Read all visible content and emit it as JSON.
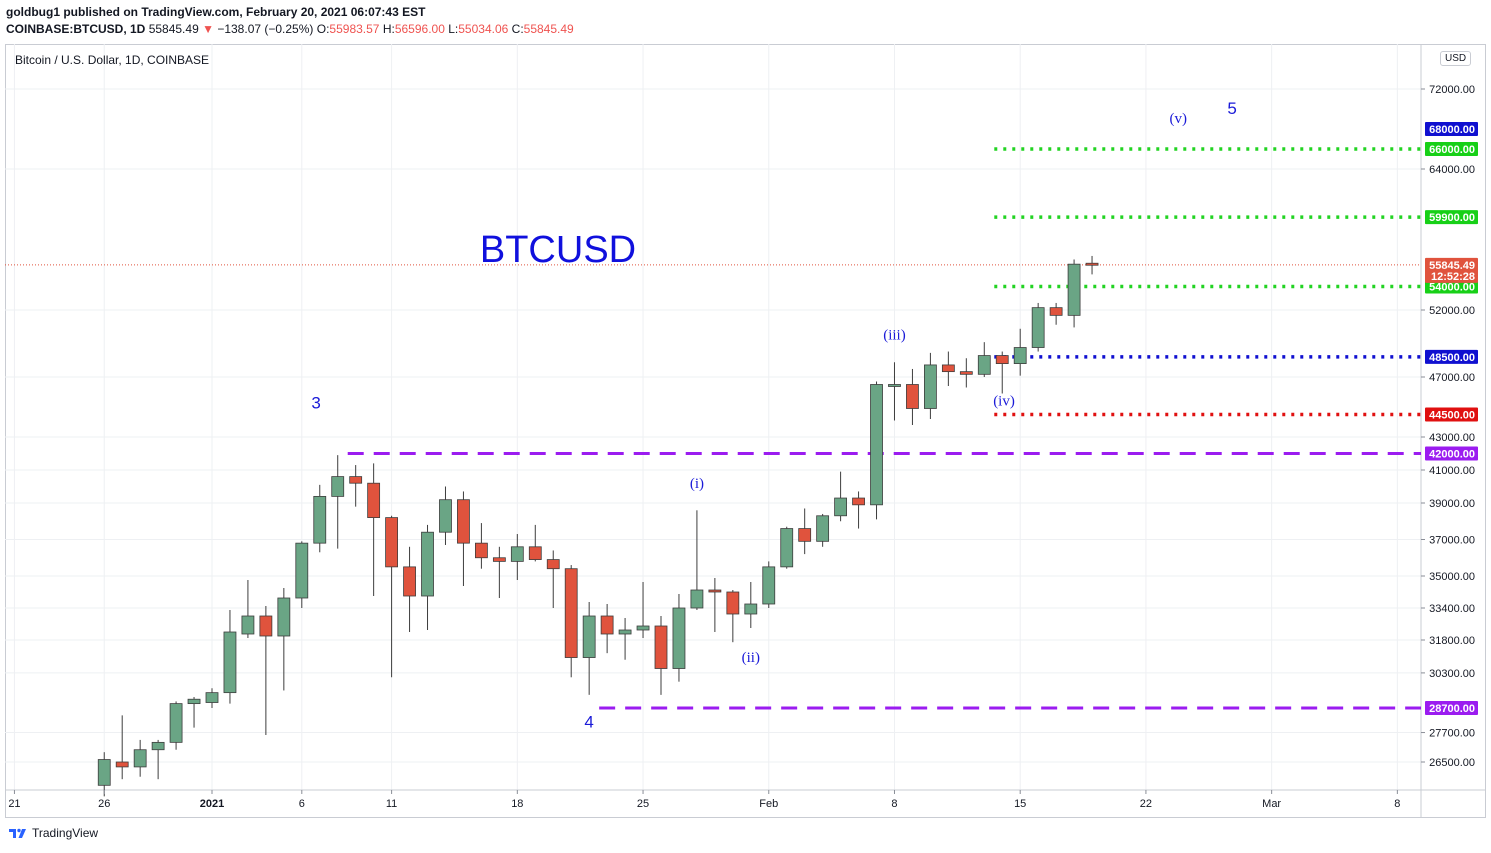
{
  "header": {
    "publisher_line": "goldbug1 published on TradingView.com, February 20, 2021 06:07:43 EST",
    "symbol": "COINBASE:BTCUSD, 1D",
    "last": "55845.49",
    "change": "−138.07 (−0.25%)",
    "o_label": "O:",
    "o_value": "55983.57",
    "h_label": "H:",
    "h_value": "56596.00",
    "l_label": "L:",
    "l_value": "55034.06",
    "c_label": "C:",
    "c_value": "55845.49"
  },
  "chart_title": "Bitcoin / U.S. Dollar, 1D, COINBASE",
  "currency_badge": "USD",
  "footer_brand": "TradingView",
  "colors": {
    "up": "#6aa585",
    "down": "#e0533d",
    "green_level": "#22d322",
    "blue_level": "#1010d0",
    "red_level": "#e01010",
    "purple_level": "#9b1cf0",
    "wave_label": "#1a1ad8"
  },
  "chart_data": {
    "type": "candlestick",
    "title": "BTCUSD",
    "y_axis_ticks": [
      "72000.00",
      "64000.00",
      "52000.00",
      "47000.00",
      "43000.00",
      "41000.00",
      "39000.00",
      "37000.00",
      "35000.00",
      "33400.00",
      "31800.00",
      "30300.00",
      "27700.00",
      "26500.00"
    ],
    "x_axis_ticks": [
      "21",
      "26",
      "2021",
      "6",
      "11",
      "18",
      "25",
      "Feb",
      "8",
      "15",
      "22",
      "Mar",
      "8"
    ],
    "x_tick_days": [
      -11,
      -6,
      0,
      5,
      10,
      17,
      24,
      31,
      38,
      45,
      52,
      59,
      66
    ],
    "candles": [
      {
        "day": -6,
        "o": 25550,
        "h": 26900,
        "l": 25100,
        "c": 26600
      },
      {
        "day": -5,
        "o": 26500,
        "h": 28400,
        "l": 25800,
        "c": 26300
      },
      {
        "day": -4,
        "o": 26300,
        "h": 27400,
        "l": 25900,
        "c": 27000
      },
      {
        "day": -3,
        "o": 27000,
        "h": 27400,
        "l": 25800,
        "c": 27300
      },
      {
        "day": -2,
        "o": 27300,
        "h": 29000,
        "l": 27000,
        "c": 28900
      },
      {
        "day": -1,
        "o": 28900,
        "h": 29200,
        "l": 27900,
        "c": 29100
      },
      {
        "day": 0,
        "o": 28950,
        "h": 29600,
        "l": 28700,
        "c": 29400
      },
      {
        "day": 1,
        "o": 29400,
        "h": 33300,
        "l": 28900,
        "c": 32200
      },
      {
        "day": 2,
        "o": 32100,
        "h": 34800,
        "l": 31900,
        "c": 33000
      },
      {
        "day": 3,
        "o": 33000,
        "h": 33500,
        "l": 27600,
        "c": 32000
      },
      {
        "day": 4,
        "o": 32000,
        "h": 34400,
        "l": 29500,
        "c": 33900
      },
      {
        "day": 5,
        "o": 33900,
        "h": 36900,
        "l": 33400,
        "c": 36800
      },
      {
        "day": 6,
        "o": 36800,
        "h": 40100,
        "l": 36300,
        "c": 39400
      },
      {
        "day": 7,
        "o": 39400,
        "h": 41900,
        "l": 36500,
        "c": 40600
      },
      {
        "day": 8,
        "o": 40600,
        "h": 41300,
        "l": 38800,
        "c": 40200
      },
      {
        "day": 9,
        "o": 40200,
        "h": 41400,
        "l": 34000,
        "c": 38200
      },
      {
        "day": 10,
        "o": 38200,
        "h": 38300,
        "l": 30100,
        "c": 35500
      },
      {
        "day": 11,
        "o": 35500,
        "h": 36600,
        "l": 32200,
        "c": 34000
      },
      {
        "day": 12,
        "o": 34000,
        "h": 37800,
        "l": 32300,
        "c": 37400
      },
      {
        "day": 13,
        "o": 37400,
        "h": 40000,
        "l": 36700,
        "c": 39200
      },
      {
        "day": 14,
        "o": 39200,
        "h": 39700,
        "l": 34500,
        "c": 36800
      },
      {
        "day": 15,
        "o": 36800,
        "h": 37900,
        "l": 35400,
        "c": 36000
      },
      {
        "day": 16,
        "o": 36000,
        "h": 36600,
        "l": 33900,
        "c": 35800
      },
      {
        "day": 17,
        "o": 35800,
        "h": 37300,
        "l": 34800,
        "c": 36600
      },
      {
        "day": 18,
        "o": 36600,
        "h": 37800,
        "l": 35800,
        "c": 35900
      },
      {
        "day": 19,
        "o": 35900,
        "h": 36400,
        "l": 33400,
        "c": 35400
      },
      {
        "day": 20,
        "o": 35400,
        "h": 35600,
        "l": 30100,
        "c": 31000
      },
      {
        "day": 21,
        "o": 31000,
        "h": 33700,
        "l": 29300,
        "c": 33000
      },
      {
        "day": 22,
        "o": 33000,
        "h": 33600,
        "l": 31200,
        "c": 32100
      },
      {
        "day": 23,
        "o": 32100,
        "h": 32900,
        "l": 30900,
        "c": 32300
      },
      {
        "day": 24,
        "o": 32300,
        "h": 34700,
        "l": 31900,
        "c": 32500
      },
      {
        "day": 25,
        "o": 32500,
        "h": 33000,
        "l": 29300,
        "c": 30500
      },
      {
        "day": 26,
        "o": 30500,
        "h": 34100,
        "l": 29900,
        "c": 33400
      },
      {
        "day": 27,
        "o": 33400,
        "h": 38600,
        "l": 33300,
        "c": 34300
      },
      {
        "day": 28,
        "o": 34300,
        "h": 34900,
        "l": 32200,
        "c": 34200
      },
      {
        "day": 29,
        "o": 34200,
        "h": 34300,
        "l": 31700,
        "c": 33100
      },
      {
        "day": 30,
        "o": 33100,
        "h": 34700,
        "l": 32400,
        "c": 33600
      },
      {
        "day": 31,
        "o": 33600,
        "h": 35800,
        "l": 33400,
        "c": 35500
      },
      {
        "day": 32,
        "o": 35500,
        "h": 37700,
        "l": 35400,
        "c": 37600
      },
      {
        "day": 33,
        "o": 37600,
        "h": 38700,
        "l": 36200,
        "c": 36900
      },
      {
        "day": 34,
        "o": 36900,
        "h": 38400,
        "l": 36600,
        "c": 38300
      },
      {
        "day": 35,
        "o": 38300,
        "h": 40900,
        "l": 38000,
        "c": 39300
      },
      {
        "day": 36,
        "o": 39300,
        "h": 39700,
        "l": 37600,
        "c": 38900
      },
      {
        "day": 37,
        "o": 38900,
        "h": 46700,
        "l": 38100,
        "c": 46500
      },
      {
        "day": 38,
        "o": 46500,
        "h": 48100,
        "l": 44100,
        "c": 46500
      },
      {
        "day": 39,
        "o": 46500,
        "h": 47600,
        "l": 43800,
        "c": 44900
      },
      {
        "day": 40,
        "o": 44900,
        "h": 48800,
        "l": 44200,
        "c": 47900
      },
      {
        "day": 41,
        "o": 47900,
        "h": 48900,
        "l": 46400,
        "c": 47400
      },
      {
        "day": 42,
        "o": 47400,
        "h": 48400,
        "l": 46300,
        "c": 47200
      },
      {
        "day": 43,
        "o": 47200,
        "h": 49600,
        "l": 47000,
        "c": 48600
      },
      {
        "day": 44,
        "o": 48600,
        "h": 48900,
        "l": 45900,
        "c": 48000
      },
      {
        "day": 45,
        "o": 48000,
        "h": 50600,
        "l": 47100,
        "c": 49200
      },
      {
        "day": 46,
        "o": 49200,
        "h": 52600,
        "l": 48900,
        "c": 52200
      },
      {
        "day": 47,
        "o": 52200,
        "h": 52600,
        "l": 50900,
        "c": 51600
      },
      {
        "day": 48,
        "o": 51600,
        "h": 56300,
        "l": 50700,
        "c": 55900
      },
      {
        "day": 49,
        "o": 55980,
        "h": 56600,
        "l": 55030,
        "c": 55850
      }
    ],
    "horizontal_levels": [
      {
        "price": 66000,
        "label": "66000.00",
        "style": "dotted",
        "color": "green",
        "from_day": 43
      },
      {
        "price": 59900,
        "label": "59900.00",
        "style": "dotted",
        "color": "green",
        "from_day": 43
      },
      {
        "price": 54000,
        "label": "54000.00",
        "style": "dotted",
        "color": "green",
        "from_day": 43
      },
      {
        "price": 48500,
        "label": "48500.00",
        "style": "dotted",
        "color": "blue",
        "from_day": 43
      },
      {
        "price": 44500,
        "label": "44500.00",
        "style": "dotted",
        "color": "red",
        "from_day": 43
      },
      {
        "price": 42000,
        "label": "42000.00",
        "style": "dashed",
        "color": "purple",
        "from_day": 7
      },
      {
        "price": 28700,
        "label": "28700.00",
        "style": "dashed",
        "color": "purple",
        "from_day": 21
      }
    ],
    "axis_badges": [
      {
        "price": 68000,
        "label": "68000.00",
        "color": "blue"
      },
      {
        "price": 55845.49,
        "label": "55845.49",
        "color": "down"
      },
      {
        "price": 54900,
        "label": "12:52:28",
        "color": "down"
      }
    ],
    "last_price": 55845.49,
    "wave_labels": [
      {
        "text": "3",
        "day": 5.8,
        "price": 44900,
        "size": "large"
      },
      {
        "text": "4",
        "day": 21,
        "price": 27900,
        "size": "large"
      },
      {
        "text": "(i)",
        "day": 27,
        "price": 39900,
        "size": "small"
      },
      {
        "text": "(ii)",
        "day": 30,
        "price": 30800,
        "size": "small"
      },
      {
        "text": "(iii)",
        "day": 38,
        "price": 49800,
        "size": "small"
      },
      {
        "text": "(iv)",
        "day": 44.1,
        "price": 45100,
        "size": "small"
      },
      {
        "text": "(v)",
        "day": 53.8,
        "price": 68600,
        "size": "small"
      },
      {
        "text": "5",
        "day": 56.8,
        "price": 69500,
        "size": "large"
      }
    ]
  }
}
